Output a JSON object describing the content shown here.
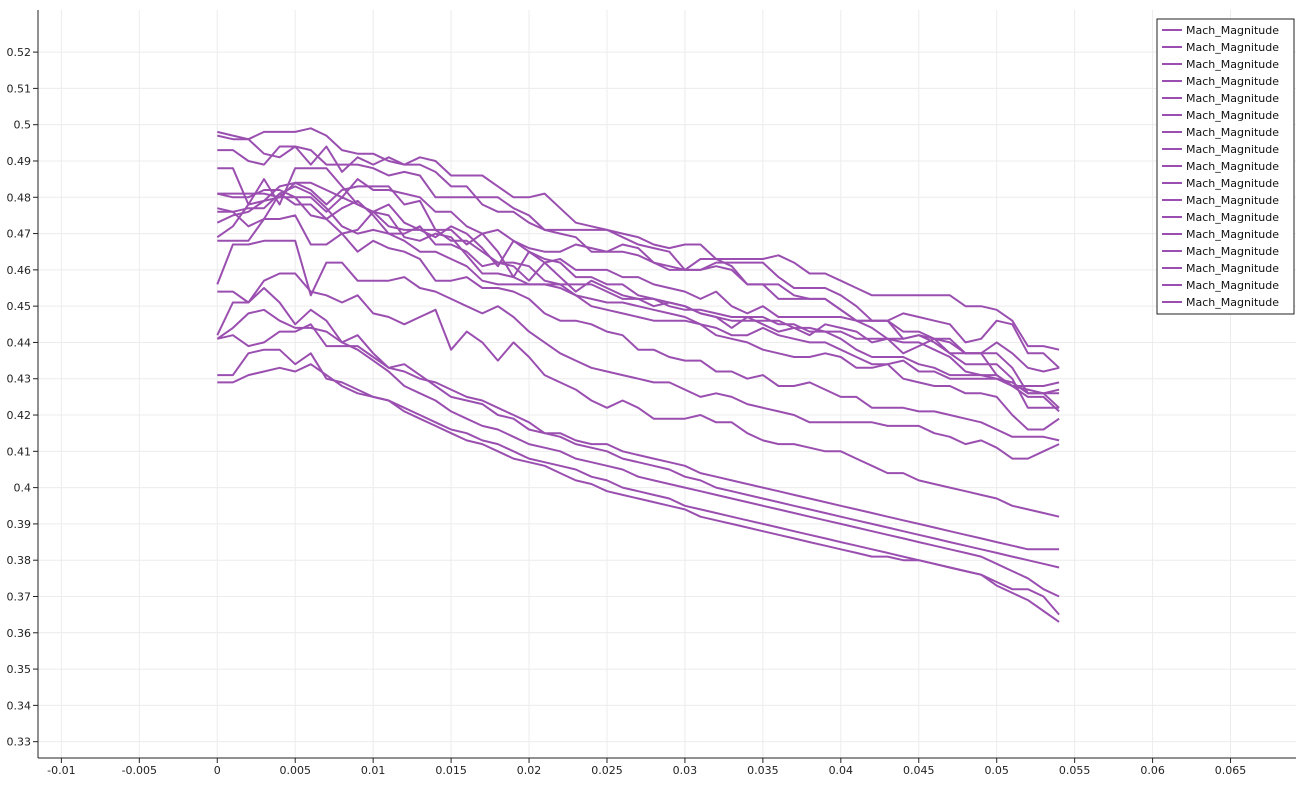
{
  "chart_data": {
    "type": "line",
    "title": "",
    "xlabel": "",
    "ylabel": "",
    "xlim": [
      -0.0115,
      0.0692
    ],
    "ylim": [
      0.3255,
      0.5316
    ],
    "x_ticks": [
      "-0.01",
      "-0.005",
      "0",
      "0.005",
      "0.01",
      "0.015",
      "0.02",
      "0.025",
      "0.03",
      "0.035",
      "0.04",
      "0.045",
      "0.05",
      "0.055",
      "0.06",
      "0.065"
    ],
    "y_ticks": [
      "0.33",
      "0.34",
      "0.35",
      "0.36",
      "0.37",
      "0.38",
      "0.39",
      "0.4",
      "0.41",
      "0.42",
      "0.43",
      "0.44",
      "0.45",
      "0.46",
      "0.47",
      "0.48",
      "0.49",
      "0.5",
      "0.51",
      "0.52"
    ],
    "grid": true,
    "legend_position": "top-right",
    "series_color": "#9a4fb0",
    "x": [
      0,
      0.001,
      0.002,
      0.003,
      0.004,
      0.005,
      0.006,
      0.007,
      0.008,
      0.009,
      0.01,
      0.011,
      0.012,
      0.013,
      0.014,
      0.015,
      0.016,
      0.017,
      0.018,
      0.019,
      0.02,
      0.021,
      0.022,
      0.023,
      0.024,
      0.025,
      0.026,
      0.027,
      0.028,
      0.029,
      0.03,
      0.031,
      0.032,
      0.033,
      0.034,
      0.035,
      0.036,
      0.037,
      0.038,
      0.039,
      0.04,
      0.041,
      0.042,
      0.043,
      0.044,
      0.045,
      0.046,
      0.047,
      0.048,
      0.049,
      0.05,
      0.051,
      0.052,
      0.053,
      0.054
    ],
    "series": [
      {
        "name": "Mach_Magnitude",
        "values": [
          0.498,
          0.497,
          0.496,
          0.498,
          0.498,
          0.498,
          0.499,
          0.497,
          0.493,
          0.492,
          0.492,
          0.49,
          0.489,
          0.491,
          0.49,
          0.486,
          0.486,
          0.486,
          0.483,
          0.48,
          0.48,
          0.481,
          0.477,
          0.473,
          0.472,
          0.471,
          0.47,
          0.469,
          0.467,
          0.466,
          0.467,
          0.467,
          0.463,
          0.463,
          0.463,
          0.463,
          0.464,
          0.462,
          0.459,
          0.459,
          0.457,
          0.455,
          0.453,
          0.453,
          0.453,
          0.453,
          0.453,
          0.453,
          0.45,
          0.45,
          0.449,
          0.446,
          0.439,
          0.439,
          0.438
        ]
      },
      {
        "name": "Mach_Magnitude",
        "values": [
          0.497,
          0.496,
          0.496,
          0.492,
          0.491,
          0.494,
          0.493,
          0.489,
          0.489,
          0.489,
          0.488,
          0.486,
          0.487,
          0.486,
          0.48,
          0.48,
          0.48,
          0.48,
          0.48,
          0.477,
          0.475,
          0.471,
          0.471,
          0.471,
          0.471,
          0.471,
          0.469,
          0.467,
          0.466,
          0.465,
          0.46,
          0.46,
          0.462,
          0.462,
          0.462,
          0.462,
          0.458,
          0.455,
          0.455,
          0.455,
          0.453,
          0.45,
          0.446,
          0.446,
          0.448,
          0.447,
          0.446,
          0.445,
          0.44,
          0.441,
          0.446,
          0.445,
          0.437,
          0.437,
          0.433
        ]
      },
      {
        "name": "Mach_Magnitude",
        "values": [
          0.493,
          0.493,
          0.49,
          0.489,
          0.494,
          0.494,
          0.489,
          0.494,
          0.487,
          0.491,
          0.489,
          0.491,
          0.489,
          0.489,
          0.487,
          0.483,
          0.483,
          0.478,
          0.476,
          0.476,
          0.473,
          0.471,
          0.47,
          0.469,
          0.465,
          0.465,
          0.467,
          0.466,
          0.462,
          0.461,
          0.46,
          0.463,
          0.463,
          0.461,
          0.456,
          0.456,
          0.456,
          0.453,
          0.452,
          0.452,
          0.449,
          0.446,
          0.446,
          0.446,
          0.441,
          0.442,
          0.44,
          0.437,
          0.437,
          0.437,
          0.44,
          0.437,
          0.433,
          0.432,
          0.433
        ]
      },
      {
        "name": "Mach_Magnitude",
        "values": [
          0.488,
          0.488,
          0.478,
          0.479,
          0.483,
          0.484,
          0.484,
          0.482,
          0.48,
          0.485,
          0.482,
          0.482,
          0.481,
          0.48,
          0.476,
          0.476,
          0.472,
          0.47,
          0.471,
          0.468,
          0.466,
          0.465,
          0.465,
          0.467,
          0.466,
          0.465,
          0.465,
          0.464,
          0.462,
          0.46,
          0.46,
          0.46,
          0.461,
          0.46,
          0.456,
          0.456,
          0.452,
          0.452,
          0.452,
          0.452,
          0.449,
          0.446,
          0.446,
          0.446,
          0.443,
          0.443,
          0.441,
          0.44,
          0.437,
          0.437,
          0.431,
          0.428,
          0.428,
          0.428,
          0.429
        ]
      },
      {
        "name": "Mach_Magnitude",
        "values": [
          0.481,
          0.481,
          0.481,
          0.481,
          0.48,
          0.48,
          0.48,
          0.476,
          0.48,
          0.478,
          0.476,
          0.478,
          0.473,
          0.471,
          0.469,
          0.472,
          0.47,
          0.466,
          0.461,
          0.468,
          0.465,
          0.462,
          0.463,
          0.46,
          0.46,
          0.46,
          0.458,
          0.458,
          0.456,
          0.455,
          0.454,
          0.452,
          0.454,
          0.45,
          0.448,
          0.45,
          0.447,
          0.447,
          0.447,
          0.447,
          0.447,
          0.446,
          0.444,
          0.441,
          0.437,
          0.439,
          0.441,
          0.441,
          0.437,
          0.437,
          0.437,
          0.433,
          0.426,
          0.426,
          0.427
        ]
      },
      {
        "name": "Mach_Magnitude",
        "values": [
          0.481,
          0.48,
          0.48,
          0.482,
          0.482,
          0.48,
          0.475,
          0.474,
          0.47,
          0.471,
          0.476,
          0.472,
          0.471,
          0.471,
          0.471,
          0.471,
          0.467,
          0.47,
          0.465,
          0.458,
          0.465,
          0.463,
          0.462,
          0.458,
          0.458,
          0.456,
          0.456,
          0.453,
          0.452,
          0.45,
          0.449,
          0.449,
          0.448,
          0.447,
          0.447,
          0.447,
          0.445,
          0.445,
          0.443,
          0.443,
          0.443,
          0.441,
          0.441,
          0.441,
          0.441,
          0.442,
          0.441,
          0.437,
          0.434,
          0.434,
          0.434,
          0.43,
          0.422,
          0.422,
          0.422
        ]
      },
      {
        "name": "Mach_Magnitude",
        "values": [
          0.477,
          0.476,
          0.477,
          0.477,
          0.481,
          0.478,
          0.478,
          0.474,
          0.477,
          0.479,
          0.475,
          0.47,
          0.47,
          0.472,
          0.467,
          0.467,
          0.465,
          0.461,
          0.462,
          0.461,
          0.457,
          0.462,
          0.458,
          0.454,
          0.457,
          0.455,
          0.453,
          0.452,
          0.45,
          0.451,
          0.45,
          0.448,
          0.447,
          0.444,
          0.447,
          0.445,
          0.443,
          0.444,
          0.442,
          0.445,
          0.444,
          0.443,
          0.44,
          0.441,
          0.44,
          0.44,
          0.438,
          0.436,
          0.432,
          0.431,
          0.431,
          0.428,
          0.425,
          0.425,
          0.421
        ]
      },
      {
        "name": "Mach_Magnitude",
        "values": [
          0.476,
          0.476,
          0.472,
          0.474,
          0.481,
          0.483,
          0.481,
          0.477,
          0.472,
          0.47,
          0.471,
          0.47,
          0.468,
          0.465,
          0.465,
          0.463,
          0.461,
          0.457,
          0.456,
          0.456,
          0.456,
          0.456,
          0.455,
          0.453,
          0.452,
          0.451,
          0.451,
          0.45,
          0.449,
          0.448,
          0.447,
          0.445,
          0.444,
          0.442,
          0.442,
          0.444,
          0.442,
          0.441,
          0.44,
          0.44,
          0.438,
          0.436,
          0.434,
          0.434,
          0.435,
          0.432,
          0.432,
          0.43,
          0.43,
          0.43,
          0.43,
          0.429,
          0.426,
          0.426,
          0.422
        ]
      },
      {
        "name": "Mach_Magnitude",
        "values": [
          0.469,
          0.472,
          0.478,
          0.485,
          0.478,
          0.488,
          0.488,
          0.488,
          0.483,
          0.478,
          0.476,
          0.475,
          0.469,
          0.468,
          0.47,
          0.469,
          0.464,
          0.459,
          0.459,
          0.458,
          0.456,
          0.456,
          0.456,
          0.453,
          0.45,
          0.449,
          0.448,
          0.447,
          0.446,
          0.446,
          0.446,
          0.445,
          0.442,
          0.441,
          0.44,
          0.438,
          0.437,
          0.436,
          0.436,
          0.437,
          0.436,
          0.433,
          0.433,
          0.434,
          0.43,
          0.429,
          0.428,
          0.428,
          0.426,
          0.426,
          0.425,
          0.42,
          0.416,
          0.416,
          0.419
        ]
      },
      {
        "name": "Mach_Magnitude",
        "values": [
          0.468,
          0.468,
          0.468,
          0.474,
          0.474,
          0.475,
          0.467,
          0.467,
          0.47,
          0.465,
          0.468,
          0.466,
          0.465,
          0.463,
          0.457,
          0.457,
          0.458,
          0.455,
          0.455,
          0.454,
          0.452,
          0.448,
          0.446,
          0.446,
          0.445,
          0.443,
          0.442,
          0.438,
          0.438,
          0.436,
          0.435,
          0.435,
          0.432,
          0.432,
          0.43,
          0.431,
          0.428,
          0.428,
          0.429,
          0.427,
          0.425,
          0.425,
          0.422,
          0.422,
          0.422,
          0.421,
          0.421,
          0.42,
          0.419,
          0.418,
          0.416,
          0.414,
          0.414,
          0.414,
          0.413
        ]
      },
      {
        "name": "Mach_Magnitude",
        "values": [
          0.456,
          0.467,
          0.467,
          0.468,
          0.468,
          0.468,
          0.453,
          0.462,
          0.462,
          0.457,
          0.457,
          0.457,
          0.458,
          0.455,
          0.454,
          0.452,
          0.45,
          0.448,
          0.45,
          0.447,
          0.443,
          0.44,
          0.437,
          0.435,
          0.433,
          0.432,
          0.431,
          0.43,
          0.429,
          0.429,
          0.427,
          0.425,
          0.426,
          0.425,
          0.423,
          0.422,
          0.421,
          0.42,
          0.418,
          0.418,
          0.418,
          0.418,
          0.418,
          0.417,
          0.417,
          0.417,
          0.415,
          0.414,
          0.412,
          0.413,
          0.411,
          0.408,
          0.408,
          0.41,
          0.412
        ]
      },
      {
        "name": "Mach_Magnitude",
        "values": [
          0.454,
          0.454,
          0.451,
          0.457,
          0.459,
          0.459,
          0.454,
          0.453,
          0.451,
          0.453,
          0.448,
          0.447,
          0.445,
          0.447,
          0.449,
          0.438,
          0.443,
          0.44,
          0.435,
          0.44,
          0.436,
          0.431,
          0.429,
          0.427,
          0.424,
          0.422,
          0.424,
          0.422,
          0.419,
          0.419,
          0.419,
          0.42,
          0.418,
          0.418,
          0.415,
          0.413,
          0.412,
          0.412,
          0.411,
          0.41,
          0.41,
          0.408,
          0.406,
          0.404,
          0.404,
          0.402,
          0.401,
          0.4,
          0.399,
          0.398,
          0.397,
          0.395,
          0.394,
          0.393,
          0.392
        ]
      },
      {
        "name": "Mach_Magnitude",
        "values": [
          0.442,
          0.451,
          0.451,
          0.455,
          0.451,
          0.445,
          0.449,
          0.446,
          0.44,
          0.442,
          0.437,
          0.433,
          0.434,
          0.431,
          0.428,
          0.425,
          0.424,
          0.423,
          0.42,
          0.419,
          0.416,
          0.415,
          0.415,
          0.413,
          0.412,
          0.412,
          0.41,
          0.409,
          0.408,
          0.407,
          0.406,
          0.404,
          0.403,
          0.402,
          0.401,
          0.4,
          0.399,
          0.398,
          0.397,
          0.396,
          0.395,
          0.394,
          0.393,
          0.392,
          0.391,
          0.39,
          0.389,
          0.388,
          0.387,
          0.386,
          0.385,
          0.384,
          0.383,
          0.383,
          0.383
        ]
      },
      {
        "name": "Mach_Magnitude",
        "values": [
          0.441,
          0.442,
          0.439,
          0.44,
          0.443,
          0.443,
          0.445,
          0.439,
          0.439,
          0.439,
          0.436,
          0.433,
          0.432,
          0.43,
          0.429,
          0.427,
          0.425,
          0.424,
          0.422,
          0.42,
          0.418,
          0.415,
          0.414,
          0.412,
          0.411,
          0.41,
          0.408,
          0.407,
          0.406,
          0.405,
          0.403,
          0.402,
          0.4,
          0.399,
          0.398,
          0.397,
          0.396,
          0.395,
          0.394,
          0.393,
          0.392,
          0.391,
          0.39,
          0.389,
          0.388,
          0.387,
          0.386,
          0.385,
          0.384,
          0.383,
          0.382,
          0.381,
          0.38,
          0.379,
          0.378
        ]
      },
      {
        "name": "Mach_Magnitude",
        "values": [
          0.431,
          0.431,
          0.437,
          0.438,
          0.438,
          0.434,
          0.437,
          0.43,
          0.429,
          0.427,
          0.425,
          0.424,
          0.422,
          0.42,
          0.418,
          0.416,
          0.415,
          0.413,
          0.412,
          0.41,
          0.408,
          0.407,
          0.406,
          0.405,
          0.403,
          0.402,
          0.4,
          0.399,
          0.398,
          0.397,
          0.395,
          0.394,
          0.393,
          0.392,
          0.391,
          0.39,
          0.389,
          0.388,
          0.387,
          0.386,
          0.385,
          0.384,
          0.383,
          0.382,
          0.381,
          0.38,
          0.379,
          0.378,
          0.377,
          0.376,
          0.374,
          0.372,
          0.372,
          0.37,
          0.365
        ]
      },
      {
        "name": "Mach_Magnitude",
        "values": [
          0.429,
          0.429,
          0.431,
          0.432,
          0.433,
          0.432,
          0.434,
          0.431,
          0.428,
          0.426,
          0.425,
          0.424,
          0.421,
          0.419,
          0.417,
          0.415,
          0.413,
          0.412,
          0.41,
          0.408,
          0.407,
          0.406,
          0.404,
          0.402,
          0.401,
          0.399,
          0.398,
          0.397,
          0.396,
          0.395,
          0.394,
          0.392,
          0.391,
          0.39,
          0.389,
          0.388,
          0.387,
          0.386,
          0.385,
          0.384,
          0.383,
          0.382,
          0.381,
          0.381,
          0.38,
          0.38,
          0.379,
          0.378,
          0.377,
          0.376,
          0.373,
          0.371,
          0.369,
          0.366,
          0.363
        ]
      },
      {
        "name": "Mach_Magnitude",
        "values": [
          0.473,
          0.475,
          0.476,
          0.479,
          0.48,
          0.484,
          0.482,
          0.478,
          0.482,
          0.483,
          0.483,
          0.483,
          0.478,
          0.479,
          0.471,
          0.468,
          0.468,
          0.465,
          0.462,
          0.462,
          0.461,
          0.457,
          0.456,
          0.456,
          0.456,
          0.454,
          0.452,
          0.452,
          0.452,
          0.451,
          0.45,
          0.448,
          0.447,
          0.446,
          0.446,
          0.446,
          0.446,
          0.444,
          0.444,
          0.443,
          0.441,
          0.438,
          0.436,
          0.436,
          0.436,
          0.434,
          0.433,
          0.431,
          0.431,
          0.431,
          0.43,
          0.428,
          0.427,
          0.426,
          0.426
        ]
      },
      {
        "name": "Mach_Magnitude",
        "values": [
          0.441,
          0.444,
          0.448,
          0.449,
          0.446,
          0.444,
          0.444,
          0.443,
          0.44,
          0.438,
          0.435,
          0.432,
          0.428,
          0.426,
          0.424,
          0.421,
          0.419,
          0.417,
          0.416,
          0.414,
          0.412,
          0.411,
          0.41,
          0.408,
          0.407,
          0.406,
          0.405,
          0.403,
          0.402,
          0.401,
          0.4,
          0.399,
          0.398,
          0.397,
          0.396,
          0.395,
          0.394,
          0.393,
          0.392,
          0.391,
          0.39,
          0.389,
          0.388,
          0.387,
          0.386,
          0.385,
          0.384,
          0.383,
          0.382,
          0.381,
          0.379,
          0.377,
          0.375,
          0.372,
          0.37
        ]
      }
    ]
  }
}
